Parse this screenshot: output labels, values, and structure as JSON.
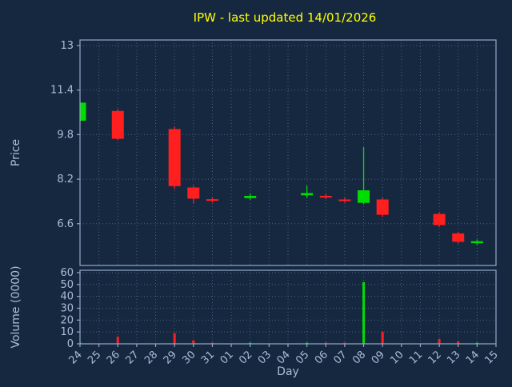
{
  "colors": {
    "background": "#162840",
    "text": "#a9bdd9",
    "grid": "#4a5f82",
    "spine": "#93a9c9",
    "title": "#ffff00",
    "up": "#00dd00",
    "down": "#ff1f1f"
  },
  "chart_data": {
    "type": "candlestick",
    "title": "IPW - last updated 14/01/2026",
    "xlabel": "Day",
    "legend": "none",
    "grid": "dotted",
    "price_axis": {
      "label": "Price",
      "tick_values": [
        6.6,
        8.2,
        9.8,
        11.4,
        13
      ],
      "tick_labels": [
        "6.6",
        "8.2",
        "9.8",
        "11.4",
        "13"
      ],
      "ylim": [
        5.1,
        13.2
      ]
    },
    "volume_axis": {
      "label": "Volume (0000)",
      "tick_values": [
        0,
        10,
        20,
        30,
        40,
        50,
        60
      ],
      "tick_labels": [
        "0",
        "10",
        "20",
        "30",
        "40",
        "50",
        "60"
      ],
      "ylim": [
        0,
        62
      ]
    },
    "x_ticks": [
      "24",
      "25",
      "26",
      "27",
      "28",
      "29",
      "30",
      "31",
      "01",
      "02",
      "03",
      "04",
      "05",
      "06",
      "07",
      "08",
      "09",
      "10",
      "11",
      "12",
      "13",
      "14",
      "15"
    ],
    "candles": [
      {
        "day": "24",
        "open": 10.3,
        "high": 10.97,
        "low": 10.25,
        "close": 10.95,
        "volume": 1
      },
      {
        "day": "26",
        "open": 10.65,
        "high": 10.72,
        "low": 9.6,
        "close": 9.65,
        "volume": 6
      },
      {
        "day": "29",
        "open": 10.0,
        "high": 10.08,
        "low": 7.85,
        "close": 7.95,
        "volume": 9
      },
      {
        "day": "30",
        "open": 7.9,
        "high": 7.97,
        "low": 7.35,
        "close": 7.5,
        "volume": 3
      },
      {
        "day": "31",
        "open": 7.48,
        "high": 7.54,
        "low": 7.36,
        "close": 7.42,
        "volume": 1
      },
      {
        "day": "02",
        "open": 7.52,
        "high": 7.68,
        "low": 7.46,
        "close": 7.6,
        "volume": 1
      },
      {
        "day": "05",
        "open": 7.62,
        "high": 7.97,
        "low": 7.52,
        "close": 7.7,
        "volume": 1
      },
      {
        "day": "06",
        "open": 7.6,
        "high": 7.67,
        "low": 7.48,
        "close": 7.54,
        "volume": 1
      },
      {
        "day": "07",
        "open": 7.47,
        "high": 7.53,
        "low": 7.36,
        "close": 7.41,
        "volume": 1
      },
      {
        "day": "08",
        "open": 7.35,
        "high": 9.35,
        "low": 7.3,
        "close": 7.8,
        "volume": 52
      },
      {
        "day": "09",
        "open": 7.47,
        "high": 7.53,
        "low": 6.85,
        "close": 6.92,
        "volume": 10
      },
      {
        "day": "12",
        "open": 6.95,
        "high": 7.02,
        "low": 6.48,
        "close": 6.55,
        "volume": 4
      },
      {
        "day": "13",
        "open": 6.25,
        "high": 6.31,
        "low": 5.88,
        "close": 5.95,
        "volume": 2
      },
      {
        "day": "14",
        "open": 5.9,
        "high": 6.03,
        "low": 5.84,
        "close": 5.97,
        "volume": 1
      }
    ]
  }
}
